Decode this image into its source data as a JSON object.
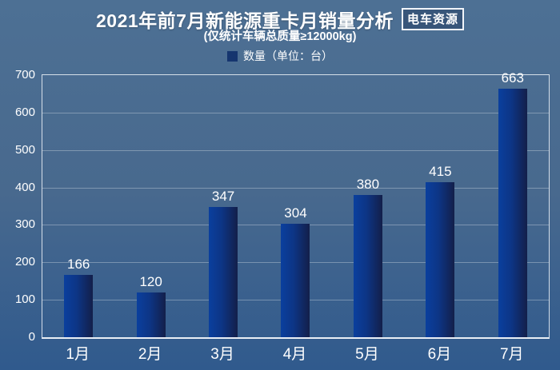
{
  "header": {
    "title": "2021年前7月新能源重卡月销量分析",
    "subtitle": "(仅统计车辆总质量≥12000kg)",
    "logo": "电车资源"
  },
  "legend": {
    "label": "数量（单位：台）",
    "marker_color": "#15356f"
  },
  "chart_data": {
    "type": "bar",
    "title": "2021年前7月新能源重卡月销量分析",
    "subtitle": "(仅统计车辆总质量≥12000kg)",
    "categories": [
      "1月",
      "2月",
      "3月",
      "4月",
      "5月",
      "6月",
      "7月"
    ],
    "values": [
      166,
      120,
      347,
      304,
      380,
      415,
      663
    ],
    "legend": [
      "数量（单位：台）"
    ],
    "xlabel": "",
    "ylabel": "",
    "ylim": [
      0,
      700
    ],
    "ytick_step": 100,
    "grid": true,
    "legend_position": "top-center",
    "bar_gradient": [
      "#0a3f9e",
      "#131f4a"
    ],
    "background_gradient": [
      "#4d7094",
      "#305a8d"
    ],
    "text_color": "#ffffff"
  }
}
